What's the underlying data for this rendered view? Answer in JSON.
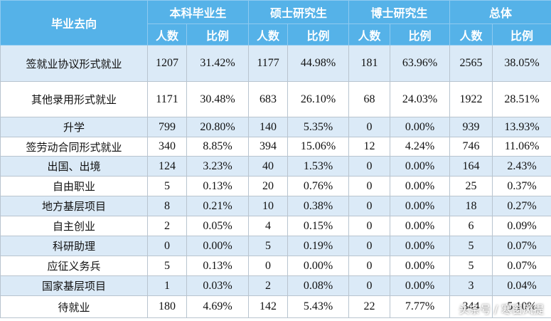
{
  "header": {
    "title": "毕业去向",
    "groups": [
      {
        "title": "本科毕业生",
        "columns": [
          "人数",
          "比例"
        ]
      },
      {
        "title": "硕士研究生",
        "columns": [
          "人数",
          "比例"
        ]
      },
      {
        "title": "博士研究生",
        "columns": [
          "人数",
          "比例"
        ]
      },
      {
        "title": "总体",
        "columns": [
          "人数",
          "比例"
        ]
      }
    ]
  },
  "table": {
    "rows": [
      [
        "签就业协议形式就业",
        "1207",
        "31.42%",
        "1177",
        "44.98%",
        "181",
        "63.96%",
        "2565",
        "38.05%"
      ],
      [
        "其他录用形式就业",
        "1171",
        "30.48%",
        "683",
        "26.10%",
        "68",
        "24.03%",
        "1922",
        "28.51%"
      ],
      [
        "升学",
        "799",
        "20.80%",
        "140",
        "5.35%",
        "0",
        "0.00%",
        "939",
        "13.93%"
      ],
      [
        "签劳动合同形式就业",
        "340",
        "8.85%",
        "394",
        "15.06%",
        "12",
        "4.24%",
        "746",
        "11.06%"
      ],
      [
        "出国、出境",
        "124",
        "3.23%",
        "40",
        "1.53%",
        "0",
        "0.00%",
        "164",
        "2.43%"
      ],
      [
        "自由职业",
        "5",
        "0.13%",
        "20",
        "0.76%",
        "0",
        "0.00%",
        "25",
        "0.37%"
      ],
      [
        "地方基层项目",
        "8",
        "0.21%",
        "10",
        "0.38%",
        "0",
        "0.00%",
        "18",
        "0.27%"
      ],
      [
        "自主创业",
        "2",
        "0.05%",
        "4",
        "0.15%",
        "0",
        "0.00%",
        "6",
        "0.09%"
      ],
      [
        "科研助理",
        "0",
        "0.00%",
        "5",
        "0.19%",
        "0",
        "0.00%",
        "5",
        "0.07%"
      ],
      [
        "应征义务兵",
        "5",
        "0.13%",
        "0",
        "0.00%",
        "0",
        "0.00%",
        "5",
        "0.07%"
      ],
      [
        "国家基层项目",
        "1",
        "0.03%",
        "2",
        "0.08%",
        "0",
        "0.00%",
        "3",
        "0.04%"
      ],
      [
        "待就业",
        "180",
        "4.69%",
        "142",
        "5.43%",
        "22",
        "7.77%",
        "344",
        "5.10%"
      ]
    ]
  },
  "watermark": "头条号 / 寒窗风提"
}
